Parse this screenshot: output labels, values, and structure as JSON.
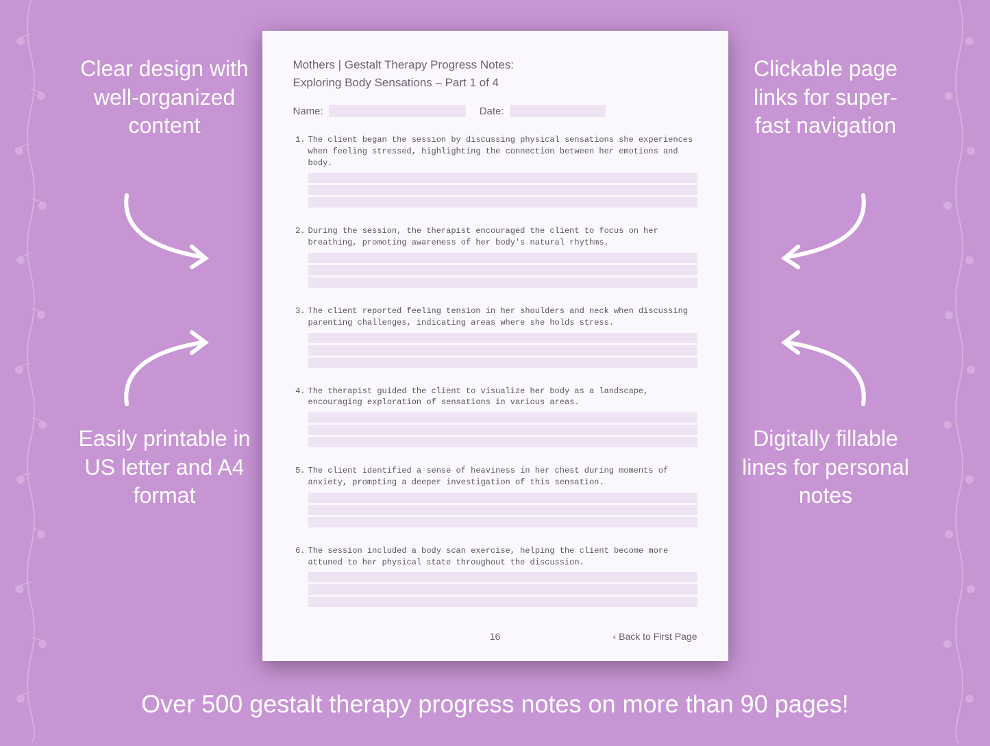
{
  "background_color": "#c794d4",
  "callouts": {
    "top_left": "Clear design with well-organized content",
    "top_right": "Clickable page links for super-fast navigation",
    "bottom_left": "Easily printable in US letter and A4 format",
    "bottom_right": "Digitally fillable lines for personal notes"
  },
  "banner": "Over 500 gestalt therapy progress notes on more than 90 pages!",
  "page": {
    "title": "Mothers | Gestalt Therapy Progress Notes:",
    "subtitle": "Exploring Body Sensations  – Part 1 of 4",
    "name_label": "Name:",
    "date_label": "Date:",
    "items": [
      {
        "num": "1.",
        "text": "The client began the session by discussing physical sensations she experiences when feeling stressed, highlighting the connection between her emotions and body."
      },
      {
        "num": "2.",
        "text": "During the session, the therapist encouraged the client to focus on her breathing, promoting awareness of her body's natural rhythms."
      },
      {
        "num": "3.",
        "text": "The client reported feeling tension in her shoulders and neck when discussing parenting challenges, indicating areas where she holds stress."
      },
      {
        "num": "4.",
        "text": "The therapist guided the client to visualize her body as a landscape, encouraging exploration of sensations in various areas."
      },
      {
        "num": "5.",
        "text": "The client identified a sense of heaviness in her chest during moments of anxiety, prompting a deeper investigation of this sensation."
      },
      {
        "num": "6.",
        "text": "The session included a body scan exercise, helping the client become more attuned to her physical state throughout the discussion."
      }
    ],
    "page_number": "16",
    "back_link": "‹ Back to First Page",
    "fill_color": "#ede3f3",
    "text_color": "#6b6070",
    "page_bg": "#fbf8fd"
  },
  "style": {
    "callout_color": "#ffffff",
    "callout_fontsize": 32,
    "banner_fontsize": 36,
    "arrow_color": "#ffffff",
    "arrow_stroke": 6
  }
}
